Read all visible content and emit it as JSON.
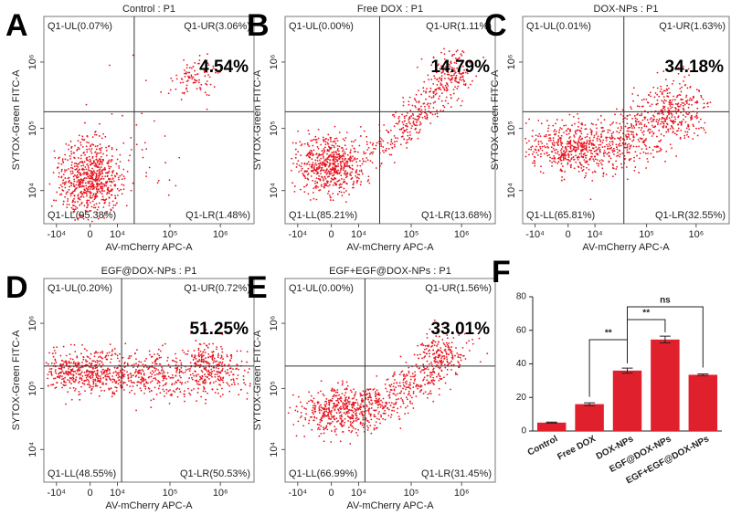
{
  "panels": [
    {
      "letter": "A",
      "title": "Control : P1",
      "ul": "Q1-UL(0.07%)",
      "ur": "Q1-UR(3.06%)",
      "ll": "Q1-LL(95.38%)",
      "lr": "Q1-LR(1.48%)",
      "total": "4.54%"
    },
    {
      "letter": "B",
      "title": "Free DOX : P1",
      "ul": "Q1-UL(0.00%)",
      "ur": "Q1-UR(1.11%)",
      "ll": "Q1-LL(85.21%)",
      "lr": "Q1-LR(13.68%)",
      "total": "14.79%"
    },
    {
      "letter": "C",
      "title": "DOX-NPs : P1",
      "ul": "Q1-UL(0.01%)",
      "ur": "Q1-UR(1.63%)",
      "ll": "Q1-LL(65.81%)",
      "lr": "Q1-LR(32.55%)",
      "total": "34.18%"
    },
    {
      "letter": "D",
      "title": "EGF@DOX-NPs : P1",
      "ul": "Q1-UL(0.20%)",
      "ur": "Q1-UR(0.72%)",
      "ll": "Q1-LL(48.55%)",
      "lr": "Q1-LR(50.53%)",
      "total": "51.25%"
    },
    {
      "letter": "E",
      "title": "EGF+EGF@DOX-NPs : P1",
      "ul": "Q1-UL(0.00%)",
      "ur": "Q1-UR(1.56%)",
      "ll": "Q1-LL(66.99%)",
      "lr": "Q1-LR(31.45%)",
      "total": "33.01%"
    }
  ],
  "flow_axes": {
    "xlabel": "AV-mCherry APC-A",
    "ylabel": "SYTOX-Green FITC-A",
    "xticks": [
      "-10⁴",
      "0",
      "10⁴",
      "10⁵",
      "10⁶"
    ],
    "yticks": [
      "10⁴",
      "10⁵",
      "10⁶"
    ]
  },
  "chart_data": {
    "type": "bar",
    "letter": "F",
    "categories": [
      "Control",
      "Free DOX",
      "DOX-NPs",
      "EGF@DOX-NPs",
      "EGF+EGF@DOX-NPs"
    ],
    "values": [
      5,
      16,
      36,
      54.5,
      33.5
    ],
    "errors": [
      0.3,
      0.8,
      1.5,
      2,
      0.5
    ],
    "color": "#e0202c",
    "ylim": [
      0,
      80
    ],
    "yticks": [
      0,
      20,
      40,
      60,
      80
    ],
    "annotations": [
      "**",
      "**",
      "ns"
    ]
  }
}
